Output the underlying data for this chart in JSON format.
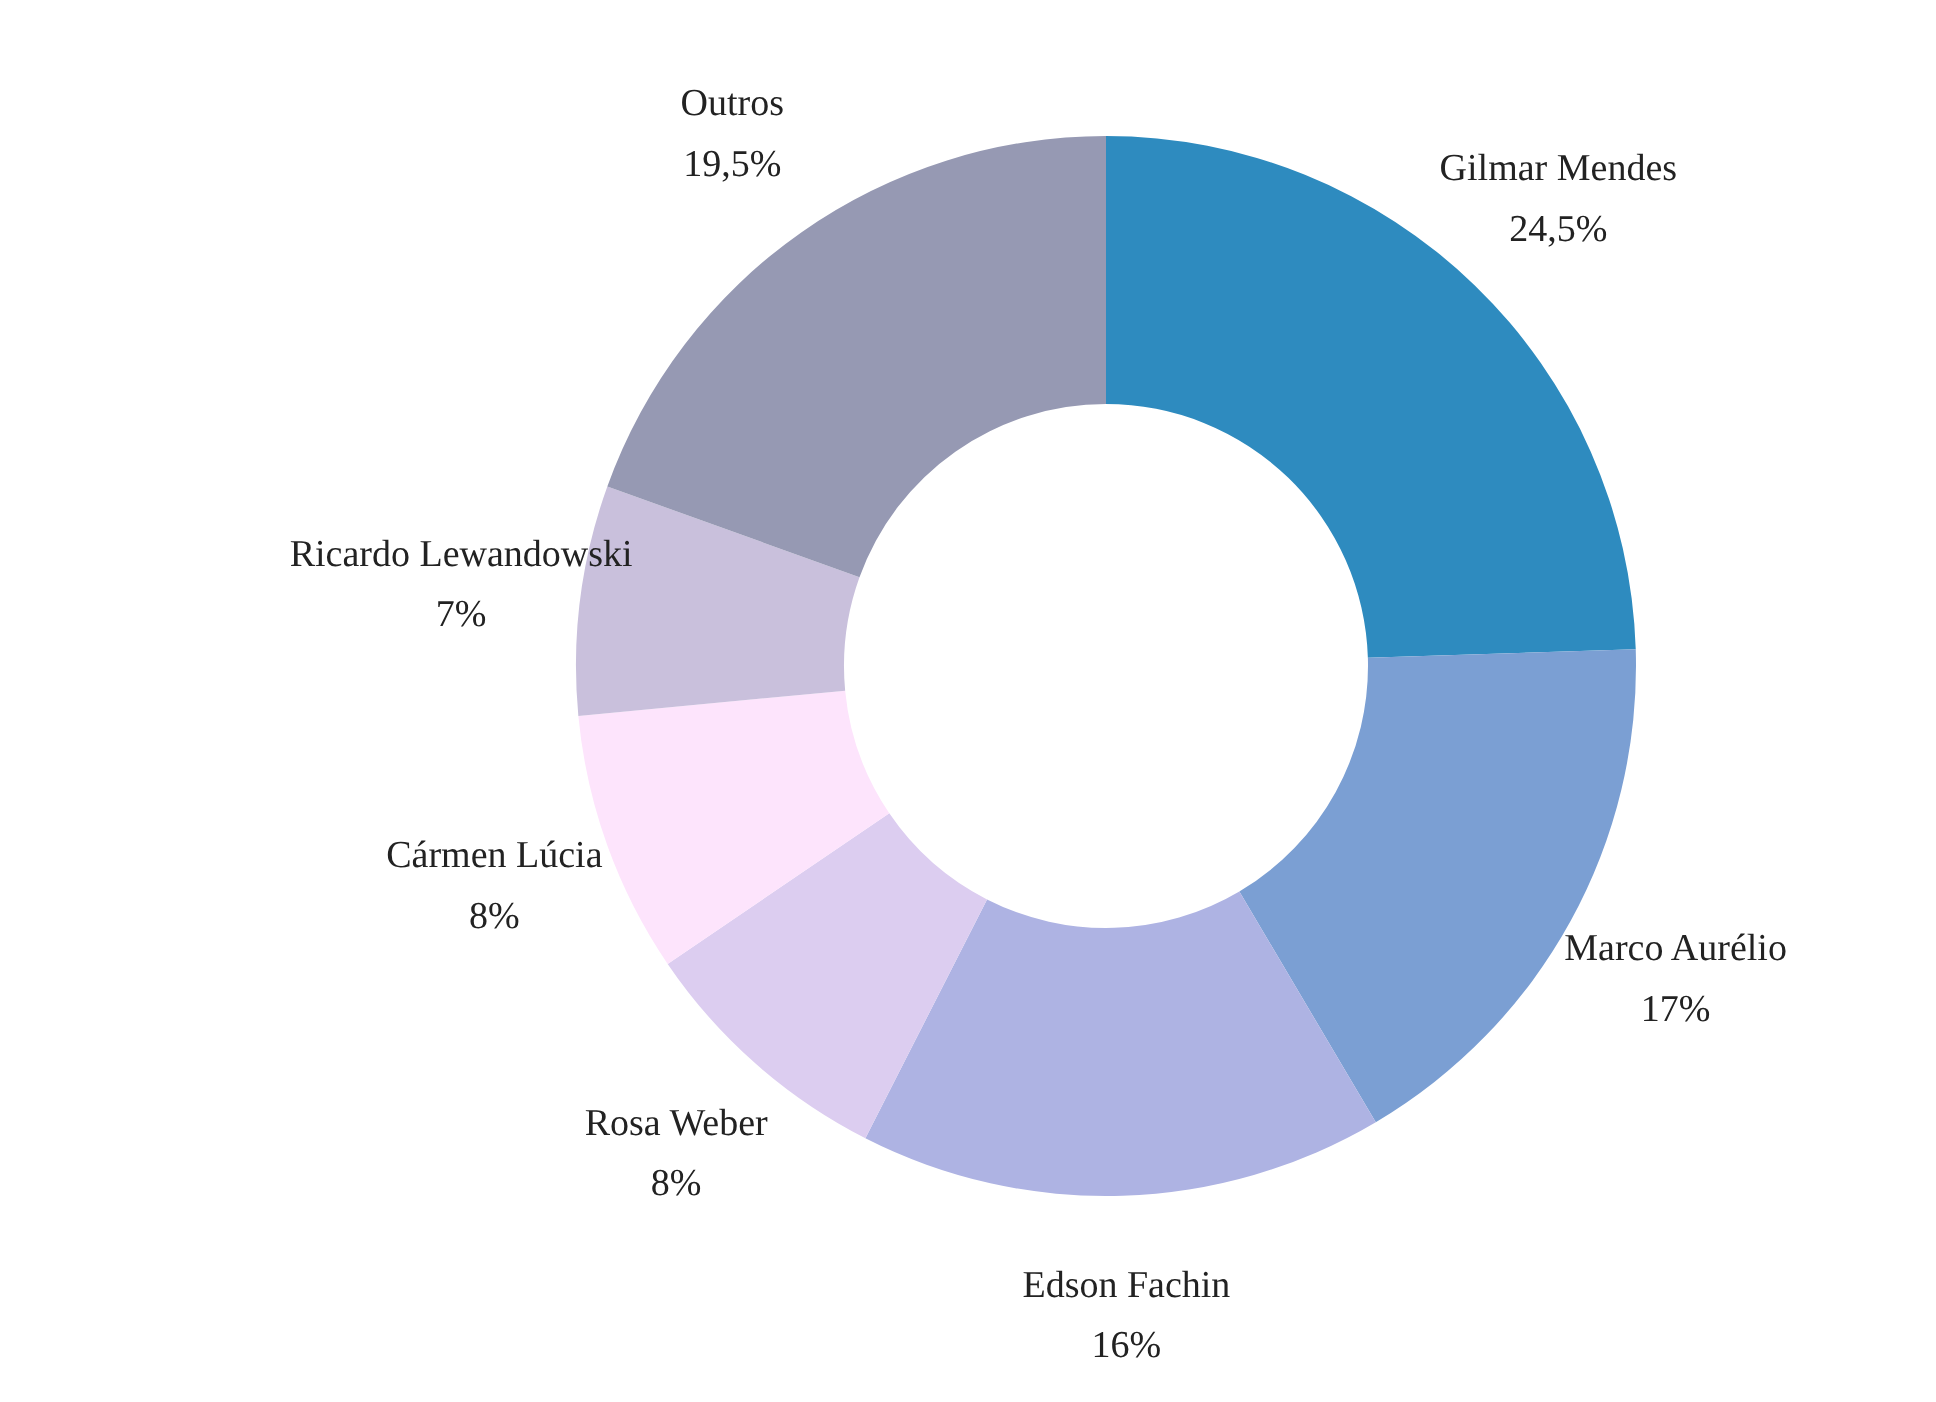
{
  "chart_data": {
    "type": "donut",
    "categories": [
      "Gilmar Mendes",
      "Marco Aurélio",
      "Edson Fachin",
      "Rosa Weber",
      "Cármen Lúcia",
      "Ricardo Lewandowski",
      "Outros"
    ],
    "values": [
      24.5,
      17,
      16,
      8,
      8,
      7,
      19.5
    ],
    "value_labels": [
      "24,5%",
      "17%",
      "16%",
      "8%",
      "8%",
      "7%",
      "19,5%"
    ],
    "colors": [
      "#2e8bbf",
      "#7b9fd3",
      "#aeb3e3",
      "#dccdf0",
      "#fde4fc",
      "#c9c0dc",
      "#9699b3"
    ],
    "legend": false
  }
}
